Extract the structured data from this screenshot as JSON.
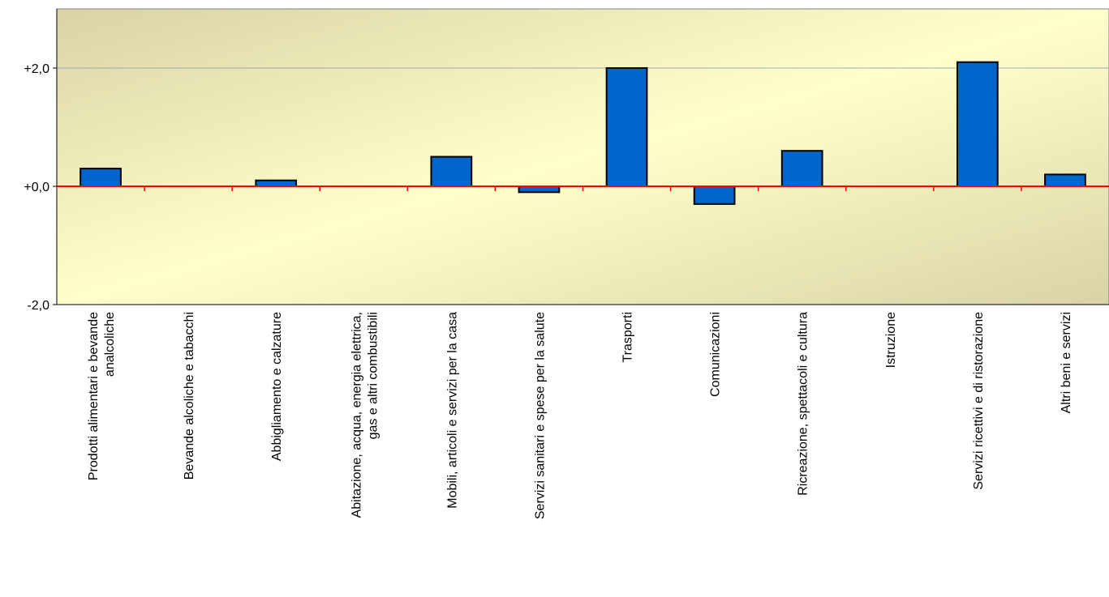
{
  "colors": {
    "plot_bg_light": "#FFFFCC",
    "plot_bg_dark": "#D9D3A5",
    "bar_fill": "#0066CC",
    "bar_stroke": "#000000",
    "zero_line": "#FF0000",
    "grid_line": "#A0A8B8",
    "axis": "#000000"
  },
  "chart_data": {
    "type": "bar",
    "title": "",
    "xlabel": "",
    "ylabel": "",
    "ylim": [
      -2.0,
      3.0
    ],
    "yticks": [
      -2.0,
      0.0,
      2.0
    ],
    "ytick_labels": [
      "-2,0",
      "+0,0",
      "+2,0"
    ],
    "grid": true,
    "legend": "none",
    "categories": [
      [
        "Prodotti alimentari e bevande",
        "analcoliche"
      ],
      [
        "Bevande alcoliche e tabacchi"
      ],
      [
        "Abbigliamento e calzature"
      ],
      [
        "Abitazione, acqua, energia elettrica,",
        "gas e altri combustibili"
      ],
      [
        "Mobili, articoli e servizi per la casa"
      ],
      [
        "Servizi sanitari e spese per la salute"
      ],
      [
        "Trasporti"
      ],
      [
        "Comunicazioni"
      ],
      [
        "Ricreazione, spettacoli e cultura"
      ],
      [
        "Istruzione"
      ],
      [
        "Servizi ricettivi e di ristorazione"
      ],
      [
        "Altri beni e servizi"
      ]
    ],
    "values": [
      0.3,
      0.0,
      0.1,
      0.0,
      0.5,
      -0.1,
      2.0,
      -0.3,
      0.6,
      0.0,
      2.1,
      0.2
    ]
  }
}
